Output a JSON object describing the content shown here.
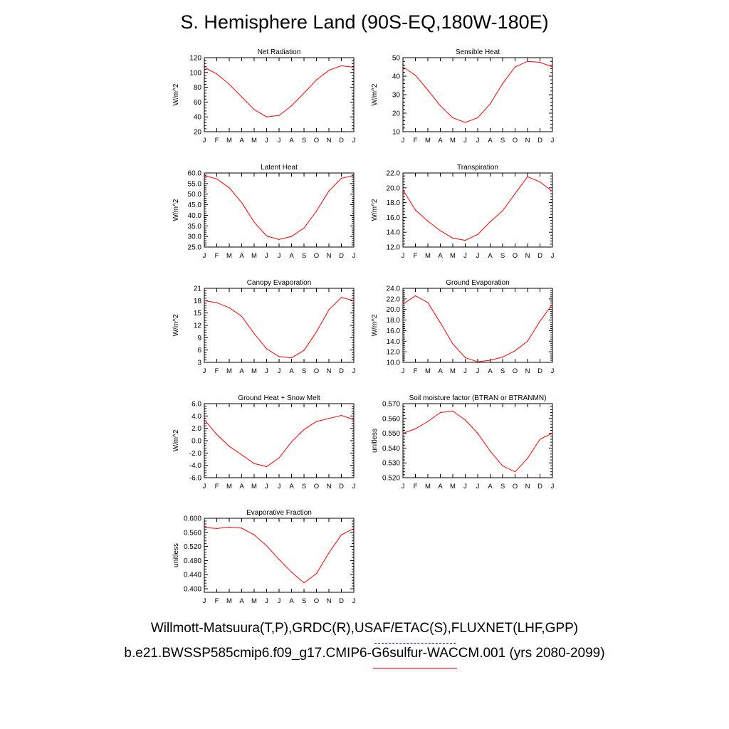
{
  "title": "S. Hemisphere Land (90S-EQ,180W-180E)",
  "footer": {
    "observations": "Willmott-Matsuura(T,P),GRDC(R),USAF/ETAC(S),FLUXNET(LHF,GPP)",
    "case": "b.e21.BWSSP585cmip6.f09_g17.CMIP6-G6sulfur-WACCM.001 (yrs 2080-2099)"
  },
  "colors": {
    "series": "#ff0000",
    "obs_dash": "#0000ff"
  },
  "chart_data": [
    {
      "type": "line",
      "title": "Net Radiation",
      "ylabel": "W/m^2",
      "categories": [
        "J",
        "F",
        "M",
        "A",
        "M",
        "J",
        "J",
        "A",
        "S",
        "O",
        "N",
        "D",
        "J"
      ],
      "ylim": [
        20,
        120
      ],
      "yticks": [
        20,
        40,
        60,
        80,
        100,
        120
      ],
      "ytick_labels": [
        "20",
        "40",
        "60",
        "80",
        "100",
        "120"
      ],
      "values": [
        107,
        98,
        84,
        67,
        50,
        40,
        42,
        55,
        72,
        90,
        103,
        109,
        107
      ]
    },
    {
      "type": "line",
      "title": "Sensible Heat",
      "ylabel": "W/m^2",
      "categories": [
        "J",
        "F",
        "M",
        "A",
        "M",
        "J",
        "J",
        "A",
        "S",
        "O",
        "N",
        "D",
        "J"
      ],
      "ylim": [
        10,
        50
      ],
      "yticks": [
        10,
        20,
        30,
        40,
        50
      ],
      "ytick_labels": [
        "10",
        "20",
        "30",
        "40",
        "50"
      ],
      "values": [
        45,
        40.5,
        32.5,
        24,
        17.5,
        15,
        17.5,
        25,
        36,
        45,
        48,
        47.5,
        45
      ]
    },
    {
      "type": "line",
      "title": "Latent Heat",
      "ylabel": "W/m^2",
      "categories": [
        "J",
        "F",
        "M",
        "A",
        "M",
        "J",
        "J",
        "A",
        "S",
        "O",
        "N",
        "D",
        "J"
      ],
      "ylim": [
        25,
        60
      ],
      "yticks": [
        25,
        30,
        35,
        40,
        45,
        50,
        55,
        60
      ],
      "ytick_labels": [
        "25.0",
        "30.0",
        "35.0",
        "40.0",
        "45.0",
        "50.0",
        "55.0",
        "60.0"
      ],
      "values": [
        58.8,
        57.2,
        53,
        46,
        36.8,
        30.2,
        28.6,
        30,
        34,
        42,
        51.5,
        57.5,
        58.8
      ]
    },
    {
      "type": "line",
      "title": "Transpiration",
      "ylabel": "W/m^2",
      "categories": [
        "J",
        "F",
        "M",
        "A",
        "M",
        "J",
        "J",
        "A",
        "S",
        "O",
        "N",
        "D",
        "J"
      ],
      "ylim": [
        12,
        22
      ],
      "yticks": [
        12,
        14,
        16,
        18,
        20,
        22
      ],
      "ytick_labels": [
        "12.0",
        "14.0",
        "16.0",
        "18.0",
        "20.0",
        "22.0"
      ],
      "values": [
        19.7,
        17,
        15.5,
        14.2,
        13.2,
        12.9,
        13.7,
        15.4,
        16.9,
        19.2,
        21.5,
        20.8,
        19.5
      ]
    },
    {
      "type": "line",
      "title": "Canopy Evaporation",
      "ylabel": "W/m^2",
      "categories": [
        "J",
        "F",
        "M",
        "A",
        "M",
        "J",
        "J",
        "A",
        "S",
        "O",
        "N",
        "D",
        "J"
      ],
      "ylim": [
        3,
        21
      ],
      "yticks": [
        3,
        6,
        9,
        12,
        15,
        18,
        21
      ],
      "ytick_labels": [
        "3",
        "6",
        "9",
        "12",
        "15",
        "18",
        "21"
      ],
      "values": [
        18,
        17.5,
        16.3,
        14.2,
        10,
        6.3,
        4.4,
        4.1,
        5.9,
        10.4,
        15.8,
        18.8,
        18
      ]
    },
    {
      "type": "line",
      "title": "Ground Evaporation",
      "ylabel": "W/m^2",
      "categories": [
        "J",
        "F",
        "M",
        "A",
        "M",
        "J",
        "J",
        "A",
        "S",
        "O",
        "N",
        "D",
        "J"
      ],
      "ylim": [
        10,
        24
      ],
      "yticks": [
        10,
        12,
        14,
        16,
        18,
        20,
        22,
        24
      ],
      "ytick_labels": [
        "10.0",
        "12.0",
        "14.0",
        "16.0",
        "18.0",
        "20.0",
        "22.0",
        "24.0"
      ],
      "values": [
        21,
        22.6,
        21.3,
        17.5,
        13.5,
        10.9,
        10.1,
        10.4,
        11,
        12.2,
        14,
        17.8,
        21
      ]
    },
    {
      "type": "line",
      "title": "Ground Heat + Snow Melt",
      "ylabel": "W/m^2",
      "categories": [
        "J",
        "F",
        "M",
        "A",
        "M",
        "J",
        "J",
        "A",
        "S",
        "O",
        "N",
        "D",
        "J"
      ],
      "ylim": [
        -6,
        6
      ],
      "yticks": [
        -6,
        -4,
        -2,
        0,
        2,
        4,
        6
      ],
      "ytick_labels": [
        "-6.0",
        "-4.0",
        "-2.0",
        "0.0",
        "2.0",
        "4.0",
        "6.0"
      ],
      "values": [
        3.4,
        1,
        -0.9,
        -2.3,
        -3.7,
        -4.2,
        -2.8,
        -0.2,
        1.8,
        3.1,
        3.6,
        4.1,
        3.4
      ]
    },
    {
      "type": "line",
      "title": "Soil moisture factor (BTRAN or BTRANMN)",
      "ylabel": "unitless",
      "categories": [
        "J",
        "F",
        "M",
        "A",
        "M",
        "J",
        "J",
        "A",
        "S",
        "O",
        "N",
        "D",
        "J"
      ],
      "ylim": [
        0.52,
        0.57
      ],
      "yticks": [
        0.52,
        0.53,
        0.54,
        0.55,
        0.56,
        0.57
      ],
      "ytick_labels": [
        "0.520",
        "0.530",
        "0.540",
        "0.550",
        "0.560",
        "0.570"
      ],
      "values": [
        0.55,
        0.553,
        0.558,
        0.564,
        0.565,
        0.559,
        0.55,
        0.538,
        0.528,
        0.524,
        0.533,
        0.546,
        0.55
      ]
    },
    {
      "type": "line",
      "title": "Evaporative Fraction",
      "ylabel": "unitless",
      "categories": [
        "J",
        "F",
        "M",
        "A",
        "M",
        "J",
        "J",
        "A",
        "S",
        "O",
        "N",
        "D",
        "J"
      ],
      "ylim": [
        0.39,
        0.6
      ],
      "yticks": [
        0.4,
        0.44,
        0.48,
        0.52,
        0.56,
        0.6
      ],
      "ytick_labels": [
        "0.400",
        "0.440",
        "0.480",
        "0.520",
        "0.560",
        "0.600"
      ],
      "values": [
        0.574,
        0.571,
        0.575,
        0.572,
        0.553,
        0.522,
        0.483,
        0.447,
        0.417,
        0.443,
        0.502,
        0.553,
        0.571
      ]
    }
  ]
}
